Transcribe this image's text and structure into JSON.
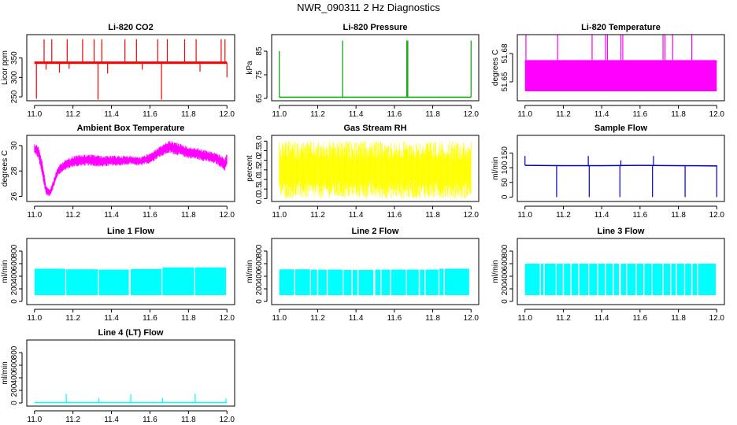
{
  "figure": {
    "title": "NWR_090311  2 Hz Diagnostics"
  },
  "chart_data": [
    {
      "type": "line",
      "title": "Li-820 CO2",
      "ylabel": "Licor ppm",
      "xlim": [
        11.0,
        12.0
      ],
      "ylim": [
        240,
        410
      ],
      "x_ticks": [
        11.0,
        11.2,
        11.4,
        11.6,
        11.8,
        12.0
      ],
      "y_ticks": [
        250,
        300,
        350
      ],
      "color": "#ff0000",
      "band": [
        336,
        340
      ],
      "series": [
        {
          "x": [
            11.0,
            12.0
          ],
          "values": [
            338,
            338
          ]
        }
      ],
      "spikes": [
        {
          "x": 11.01,
          "to": 245
        },
        {
          "x": 11.05,
          "to": 398
        },
        {
          "x": 11.06,
          "to": 320
        },
        {
          "x": 11.09,
          "to": 398
        },
        {
          "x": 11.13,
          "to": 312
        },
        {
          "x": 11.17,
          "to": 398
        },
        {
          "x": 11.18,
          "to": 322
        },
        {
          "x": 11.25,
          "to": 398
        },
        {
          "x": 11.31,
          "to": 398
        },
        {
          "x": 11.33,
          "to": 243
        },
        {
          "x": 11.35,
          "to": 398
        },
        {
          "x": 11.38,
          "to": 310
        },
        {
          "x": 11.47,
          "to": 398
        },
        {
          "x": 11.53,
          "to": 398
        },
        {
          "x": 11.56,
          "to": 320
        },
        {
          "x": 11.64,
          "to": 398
        },
        {
          "x": 11.66,
          "to": 243
        },
        {
          "x": 11.69,
          "to": 398
        },
        {
          "x": 11.78,
          "to": 398
        },
        {
          "x": 11.84,
          "to": 398
        },
        {
          "x": 11.86,
          "to": 315
        },
        {
          "x": 11.97,
          "to": 398
        },
        {
          "x": 11.99,
          "to": 398
        },
        {
          "x": 12.0,
          "to": 300
        }
      ]
    },
    {
      "type": "line",
      "title": "Li-820 Pressure",
      "ylabel": "kPa",
      "xlim": [
        11.0,
        12.0
      ],
      "ylim": [
        64,
        92
      ],
      "x_ticks": [
        11.0,
        11.2,
        11.4,
        11.6,
        11.8,
        12.0
      ],
      "y_ticks": [
        65,
        75,
        85
      ],
      "color": "#00a000",
      "series": [
        {
          "x": [
            11.0,
            12.0
          ],
          "values": [
            65.5,
            65.5
          ]
        }
      ],
      "spikes": [
        {
          "x": 11.0,
          "to": 85
        },
        {
          "x": 11.33,
          "to": 89.5
        },
        {
          "x": 11.665,
          "to": 89.5
        },
        {
          "x": 11.67,
          "to": 89.5
        },
        {
          "x": 12.0,
          "to": 89.5
        }
      ]
    },
    {
      "type": "area",
      "title": "Li-820 Temperature",
      "ylabel": "degrees C",
      "xlim": [
        11.0,
        12.0
      ],
      "ylim": [
        51.63,
        51.7
      ],
      "x_ticks": [
        11.0,
        11.2,
        11.4,
        11.6,
        11.8,
        12.0
      ],
      "y_ticks": [
        51.65,
        51.68
      ],
      "y_tick_labels": [
        "51.65",
        "51.68"
      ],
      "color": "#ff00ff",
      "band": [
        51.64,
        51.673
      ],
      "spikes": [
        {
          "x": 11.005,
          "to": 51.7
        },
        {
          "x": 11.17,
          "to": 51.7
        },
        {
          "x": 11.35,
          "to": 51.7
        },
        {
          "x": 11.42,
          "to": 51.7
        },
        {
          "x": 11.43,
          "to": 51.7
        },
        {
          "x": 11.5,
          "to": 51.7
        },
        {
          "x": 11.51,
          "to": 51.7
        },
        {
          "x": 11.72,
          "to": 51.7
        },
        {
          "x": 11.73,
          "to": 51.7
        },
        {
          "x": 11.77,
          "to": 51.7
        },
        {
          "x": 11.87,
          "to": 51.7
        }
      ]
    },
    {
      "type": "line",
      "title": "Ambient Box Temperature",
      "ylabel": "degrees C",
      "xlim": [
        11.0,
        12.0
      ],
      "ylim": [
        25.6,
        30.8
      ],
      "x_ticks": [
        11.0,
        11.2,
        11.4,
        11.6,
        11.8,
        12.0
      ],
      "y_ticks": [
        26,
        28,
        30
      ],
      "color": "#ff00ff",
      "envelope": {
        "x": [
          11.0,
          11.02,
          11.04,
          11.06,
          11.08,
          11.1,
          11.12,
          11.15,
          11.2,
          11.25,
          11.3,
          11.35,
          11.4,
          11.45,
          11.5,
          11.55,
          11.6,
          11.65,
          11.7,
          11.75,
          11.8,
          11.85,
          11.9,
          11.95,
          11.99,
          12.0
        ],
        "lower": [
          29.3,
          29.0,
          27.5,
          26.1,
          26.0,
          26.7,
          27.6,
          28.0,
          28.3,
          28.4,
          28.4,
          28.3,
          28.4,
          28.4,
          28.5,
          28.4,
          28.6,
          29.1,
          29.4,
          29.2,
          29.0,
          28.9,
          28.7,
          28.5,
          28.0,
          28.4
        ],
        "upper": [
          30.2,
          30.0,
          28.8,
          26.9,
          26.6,
          27.4,
          28.3,
          28.8,
          29.2,
          29.3,
          29.3,
          29.2,
          29.2,
          29.2,
          29.2,
          29.1,
          29.4,
          29.9,
          30.4,
          30.2,
          29.9,
          29.8,
          29.6,
          29.4,
          29.0,
          29.4
        ]
      }
    },
    {
      "type": "line",
      "title": "Gas Stream RH",
      "ylabel": "percent",
      "xlim": [
        11.0,
        12.0
      ],
      "ylim": [
        -0.15,
        3.3
      ],
      "x_ticks": [
        11.0,
        11.2,
        11.4,
        11.6,
        11.8,
        12.0
      ],
      "y_ticks": [
        0.0,
        0.5,
        1.0,
        1.5,
        2.0,
        2.5,
        3.0
      ],
      "y_tick_labels": [
        "0.0",
        "0.5",
        "1.0",
        "1.5",
        "2.0",
        "2.5",
        "3.0"
      ],
      "color": "#ffff00",
      "band": [
        0.3,
        2.7
      ],
      "noise_range": [
        0.0,
        3.0
      ]
    },
    {
      "type": "line",
      "title": "Sample Flow",
      "ylabel": "ml/min",
      "xlim": [
        11.0,
        12.0
      ],
      "ylim": [
        -15,
        210
      ],
      "x_ticks": [
        11.0,
        11.2,
        11.4,
        11.6,
        11.8,
        12.0
      ],
      "y_ticks": [
        0,
        50,
        100,
        150
      ],
      "color": "#0000cc",
      "series": [
        {
          "x": [
            11.0,
            11.2,
            11.4,
            11.6,
            11.8,
            12.0
          ],
          "values": [
            108,
            107,
            107,
            108,
            107,
            106
          ]
        }
      ],
      "spikes": [
        {
          "x": 11.0,
          "to": 140
        },
        {
          "x": 11.165,
          "to": 0
        },
        {
          "x": 11.33,
          "to": 140
        },
        {
          "x": 11.335,
          "to": 0
        },
        {
          "x": 11.495,
          "to": 0
        },
        {
          "x": 11.5,
          "to": 125
        },
        {
          "x": 11.665,
          "to": 0
        },
        {
          "x": 11.67,
          "to": 140
        },
        {
          "x": 11.835,
          "to": 0
        },
        {
          "x": 12.0,
          "to": 0
        }
      ]
    },
    {
      "type": "area",
      "title": "Line 1 Flow",
      "ylabel": "ml/min",
      "xlim": [
        11.0,
        12.0
      ],
      "ylim": [
        -50,
        1000
      ],
      "x_ticks": [
        11.0,
        11.2,
        11.4,
        11.6,
        11.8,
        12.0
      ],
      "y_ticks": [
        0,
        200,
        400,
        600,
        800
      ],
      "color": "#00ffff",
      "band": [
        100,
        520
      ],
      "segments": [
        {
          "from": 11.0,
          "to": 11.16,
          "top": 520
        },
        {
          "from": 11.165,
          "to": 11.33,
          "top": 510
        },
        {
          "from": 11.335,
          "to": 11.49,
          "top": 505
        },
        {
          "from": 11.5,
          "to": 11.66,
          "top": 515
        },
        {
          "from": 11.665,
          "to": 11.83,
          "top": 540
        },
        {
          "from": 11.835,
          "to": 11.995,
          "top": 540
        }
      ]
    },
    {
      "type": "area",
      "title": "Line 2 Flow",
      "ylabel": "ml/min",
      "xlim": [
        11.0,
        12.0
      ],
      "ylim": [
        -50,
        1000
      ],
      "x_ticks": [
        11.0,
        11.2,
        11.4,
        11.6,
        11.8,
        12.0
      ],
      "y_ticks": [
        0,
        200,
        400,
        600,
        800
      ],
      "color": "#00ffff",
      "band": [
        100,
        510
      ],
      "segments": [
        {
          "from": 11.0,
          "to": 11.16,
          "top": 510
        },
        {
          "from": 11.165,
          "to": 11.33,
          "top": 505
        },
        {
          "from": 11.335,
          "to": 11.49,
          "top": 500
        },
        {
          "from": 11.5,
          "to": 11.66,
          "top": 505
        },
        {
          "from": 11.665,
          "to": 11.83,
          "top": 505
        },
        {
          "from": 11.835,
          "to": 11.99,
          "top": 520
        }
      ],
      "gaps": [
        11.08,
        11.2,
        11.25,
        11.38,
        11.41,
        11.53,
        11.58,
        11.73,
        11.76,
        11.86
      ]
    },
    {
      "type": "area",
      "title": "Line 3 Flow",
      "ylabel": "ml/min",
      "xlim": [
        11.0,
        12.0
      ],
      "ylim": [
        -50,
        1000
      ],
      "x_ticks": [
        11.0,
        11.2,
        11.4,
        11.6,
        11.8,
        12.0
      ],
      "y_ticks": [
        0,
        200,
        400,
        600,
        800
      ],
      "color": "#00ffff",
      "band": [
        100,
        600
      ],
      "segments": [
        {
          "from": 11.0,
          "to": 11.16,
          "top": 600
        },
        {
          "from": 11.165,
          "to": 11.33,
          "top": 600
        },
        {
          "from": 11.335,
          "to": 11.49,
          "top": 600
        },
        {
          "from": 11.5,
          "to": 11.66,
          "top": 600
        },
        {
          "from": 11.665,
          "to": 11.83,
          "top": 600
        },
        {
          "from": 11.835,
          "to": 11.995,
          "top": 600
        }
      ],
      "gaps": [
        11.08,
        11.1,
        11.2,
        11.24,
        11.28,
        11.38,
        11.42,
        11.46,
        11.53,
        11.58,
        11.62,
        11.72,
        11.76,
        11.79,
        11.87,
        11.9
      ]
    },
    {
      "type": "line",
      "title": "Line 4 (LT) Flow",
      "ylabel": "ml/min",
      "xlim": [
        11.0,
        12.0
      ],
      "ylim": [
        -50,
        1000
      ],
      "x_ticks": [
        11.0,
        11.2,
        11.4,
        11.6,
        11.8,
        12.0
      ],
      "y_ticks": [
        0,
        200,
        400,
        600,
        800
      ],
      "color": "#00ffff",
      "series": [
        {
          "x": [
            11.0,
            12.0
          ],
          "values": [
            5,
            5
          ]
        }
      ],
      "spikes": [
        {
          "x": 11.165,
          "to": 145
        },
        {
          "x": 11.335,
          "to": 80
        },
        {
          "x": 11.5,
          "to": 140
        },
        {
          "x": 11.665,
          "to": 80
        },
        {
          "x": 11.835,
          "to": 150
        },
        {
          "x": 11.995,
          "to": 70
        }
      ]
    }
  ]
}
